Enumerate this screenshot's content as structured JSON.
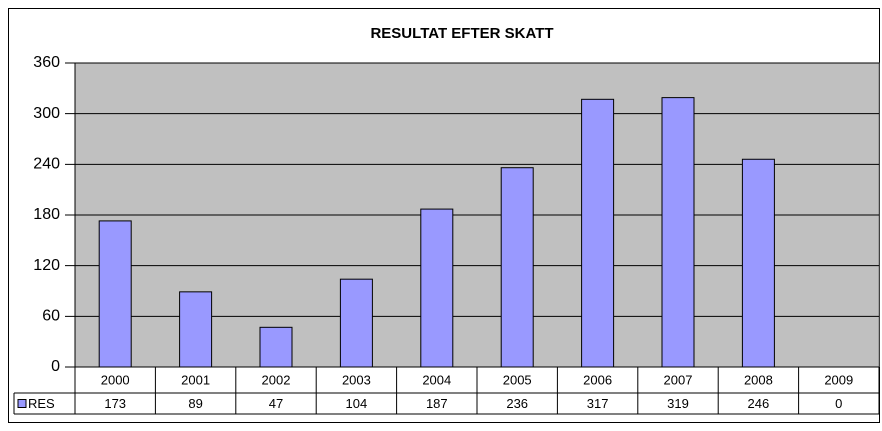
{
  "chart_data": {
    "type": "bar",
    "title": "RESULTAT EFTER SKATT",
    "categories": [
      "2000",
      "2001",
      "2002",
      "2003",
      "2004",
      "2005",
      "2006",
      "2007",
      "2008",
      "2009"
    ],
    "series": [
      {
        "name": "RES",
        "color": "#9999ff",
        "values": [
          173,
          89,
          47,
          104,
          187,
          236,
          317,
          319,
          246,
          0
        ]
      }
    ],
    "ylim": [
      0,
      360
    ],
    "yticks": [
      0,
      60,
      120,
      180,
      240,
      300,
      360
    ],
    "grid": true,
    "data_table": true
  }
}
